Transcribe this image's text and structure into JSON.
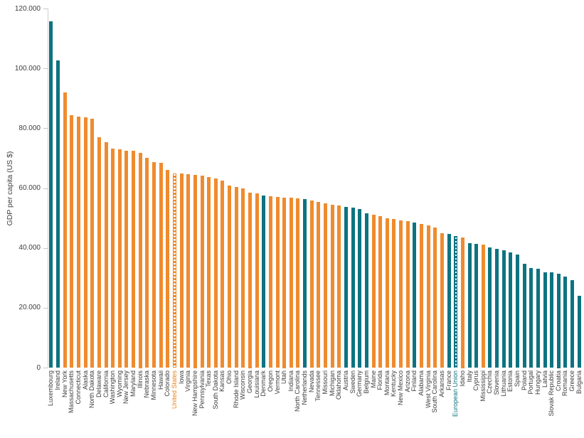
{
  "chart_data": {
    "type": "bar",
    "title": "",
    "xlabel": "",
    "ylabel": "GDP per capita (US $)",
    "ylim": [
      0,
      120000
    ],
    "grid": false,
    "legend": "none",
    "yticks": [
      {
        "value": 0,
        "label": "0"
      },
      {
        "value": 20000,
        "label": "20.000"
      },
      {
        "value": 40000,
        "label": "40.000"
      },
      {
        "value": 60000,
        "label": "60.000"
      },
      {
        "value": 80000,
        "label": "80.000"
      },
      {
        "value": 100000,
        "label": "100.000"
      },
      {
        "value": 120000,
        "label": "120.000"
      }
    ],
    "colors": {
      "us_state": "#ef8b2e",
      "eu_country": "#0d7380",
      "us_total_label": "#e8831d",
      "eu_total_label": "#0d7380",
      "axis_text": "#3d3d3d",
      "axis_line": "#cfcfcf"
    },
    "note_dashed_bars": "United States and European Union bars are drawn with a white dashed fill pattern",
    "points": [
      {
        "label": "Luxembourg",
        "value": 115900,
        "group": "eu_country"
      },
      {
        "label": "Ireland",
        "value": 102800,
        "group": "eu_country"
      },
      {
        "label": "New York",
        "value": 92100,
        "group": "us_state"
      },
      {
        "label": "Massachusetts",
        "value": 84400,
        "group": "us_state"
      },
      {
        "label": "Connecticut",
        "value": 84100,
        "group": "us_state"
      },
      {
        "label": "Alaska",
        "value": 83700,
        "group": "us_state"
      },
      {
        "label": "North Dakota",
        "value": 83300,
        "group": "us_state"
      },
      {
        "label": "Delaware",
        "value": 77000,
        "group": "us_state"
      },
      {
        "label": "California",
        "value": 75400,
        "group": "us_state"
      },
      {
        "label": "Washington",
        "value": 73400,
        "group": "us_state"
      },
      {
        "label": "Wyoming",
        "value": 73100,
        "group": "us_state"
      },
      {
        "label": "New Jersey",
        "value": 72700,
        "group": "us_state"
      },
      {
        "label": "Maryland",
        "value": 72500,
        "group": "us_state"
      },
      {
        "label": "Illinois",
        "value": 72000,
        "group": "us_state"
      },
      {
        "label": "Nebraska",
        "value": 70300,
        "group": "us_state"
      },
      {
        "label": "Minnesota",
        "value": 68900,
        "group": "us_state"
      },
      {
        "label": "Hawaii",
        "value": 68500,
        "group": "us_state"
      },
      {
        "label": "Colorado",
        "value": 66200,
        "group": "us_state"
      },
      {
        "label": "United States",
        "value": 65100,
        "group": "us_total"
      },
      {
        "label": "Iowa",
        "value": 64900,
        "group": "us_state"
      },
      {
        "label": "Virginia",
        "value": 64700,
        "group": "us_state"
      },
      {
        "label": "New Hampshire",
        "value": 64500,
        "group": "us_state"
      },
      {
        "label": "Pennsylvania",
        "value": 64300,
        "group": "us_state"
      },
      {
        "label": "Texas",
        "value": 63800,
        "group": "us_state"
      },
      {
        "label": "South Dakota",
        "value": 63400,
        "group": "us_state"
      },
      {
        "label": "Kansas",
        "value": 62700,
        "group": "us_state"
      },
      {
        "label": "Ohio",
        "value": 60900,
        "group": "us_state"
      },
      {
        "label": "Rhode Island",
        "value": 60400,
        "group": "us_state"
      },
      {
        "label": "Wisconsin",
        "value": 59900,
        "group": "us_state"
      },
      {
        "label": "Georgia",
        "value": 58500,
        "group": "us_state"
      },
      {
        "label": "Louisiana",
        "value": 58300,
        "group": "us_state"
      },
      {
        "label": "Denmark",
        "value": 57700,
        "group": "eu_country"
      },
      {
        "label": "Oregon",
        "value": 57300,
        "group": "us_state"
      },
      {
        "label": "Vermont",
        "value": 57100,
        "group": "us_state"
      },
      {
        "label": "Utah",
        "value": 57000,
        "group": "us_state"
      },
      {
        "label": "Indiana",
        "value": 56900,
        "group": "us_state"
      },
      {
        "label": "North Carolina",
        "value": 56700,
        "group": "us_state"
      },
      {
        "label": "Netherlands",
        "value": 56500,
        "group": "eu_country"
      },
      {
        "label": "Nevada",
        "value": 56000,
        "group": "us_state"
      },
      {
        "label": "Tennessee",
        "value": 55400,
        "group": "us_state"
      },
      {
        "label": "Missouri",
        "value": 55000,
        "group": "us_state"
      },
      {
        "label": "Michigan",
        "value": 54600,
        "group": "us_state"
      },
      {
        "label": "Oklahoma",
        "value": 54200,
        "group": "us_state"
      },
      {
        "label": "Austria",
        "value": 53900,
        "group": "eu_country"
      },
      {
        "label": "Sweden",
        "value": 53600,
        "group": "eu_country"
      },
      {
        "label": "Germany",
        "value": 53100,
        "group": "eu_country"
      },
      {
        "label": "Belgium",
        "value": 51800,
        "group": "eu_country"
      },
      {
        "label": "Maine",
        "value": 51200,
        "group": "us_state"
      },
      {
        "label": "Florida",
        "value": 50700,
        "group": "us_state"
      },
      {
        "label": "Montana",
        "value": 50100,
        "group": "us_state"
      },
      {
        "label": "Kentucky",
        "value": 49700,
        "group": "us_state"
      },
      {
        "label": "New Mexico",
        "value": 49400,
        "group": "us_state"
      },
      {
        "label": "Arizona",
        "value": 49100,
        "group": "us_state"
      },
      {
        "label": "Finland",
        "value": 48600,
        "group": "eu_country"
      },
      {
        "label": "Alabama",
        "value": 48200,
        "group": "us_state"
      },
      {
        "label": "West Virginia",
        "value": 47600,
        "group": "us_state"
      },
      {
        "label": "South Carolina",
        "value": 47000,
        "group": "us_state"
      },
      {
        "label": "Arkansas",
        "value": 45100,
        "group": "us_state"
      },
      {
        "label": "France",
        "value": 44800,
        "group": "eu_country"
      },
      {
        "label": "European Union",
        "value": 44000,
        "group": "eu_total"
      },
      {
        "label": "Idaho",
        "value": 43500,
        "group": "us_state"
      },
      {
        "label": "Italy",
        "value": 41800,
        "group": "eu_country"
      },
      {
        "label": "Cyprus",
        "value": 41500,
        "group": "eu_country"
      },
      {
        "label": "Mississippi",
        "value": 41200,
        "group": "us_state"
      },
      {
        "label": "Czechia",
        "value": 40300,
        "group": "eu_country"
      },
      {
        "label": "Slovenia",
        "value": 39800,
        "group": "eu_country"
      },
      {
        "label": "Lithuania",
        "value": 39400,
        "group": "eu_country"
      },
      {
        "label": "Estonia",
        "value": 38600,
        "group": "eu_country"
      },
      {
        "label": "Spain",
        "value": 37900,
        "group": "eu_country"
      },
      {
        "label": "Poland",
        "value": 34800,
        "group": "eu_country"
      },
      {
        "label": "Portugal",
        "value": 33500,
        "group": "eu_country"
      },
      {
        "label": "Hungary",
        "value": 33200,
        "group": "eu_country"
      },
      {
        "label": "Latvia",
        "value": 32000,
        "group": "eu_country"
      },
      {
        "label": "Slovak Republic",
        "value": 31900,
        "group": "eu_country"
      },
      {
        "label": "Croatia",
        "value": 31500,
        "group": "eu_country"
      },
      {
        "label": "Romania",
        "value": 30600,
        "group": "eu_country"
      },
      {
        "label": "Greece",
        "value": 29400,
        "group": "eu_country"
      },
      {
        "label": "Bulgaria",
        "value": 24200,
        "group": "eu_country"
      }
    ]
  }
}
